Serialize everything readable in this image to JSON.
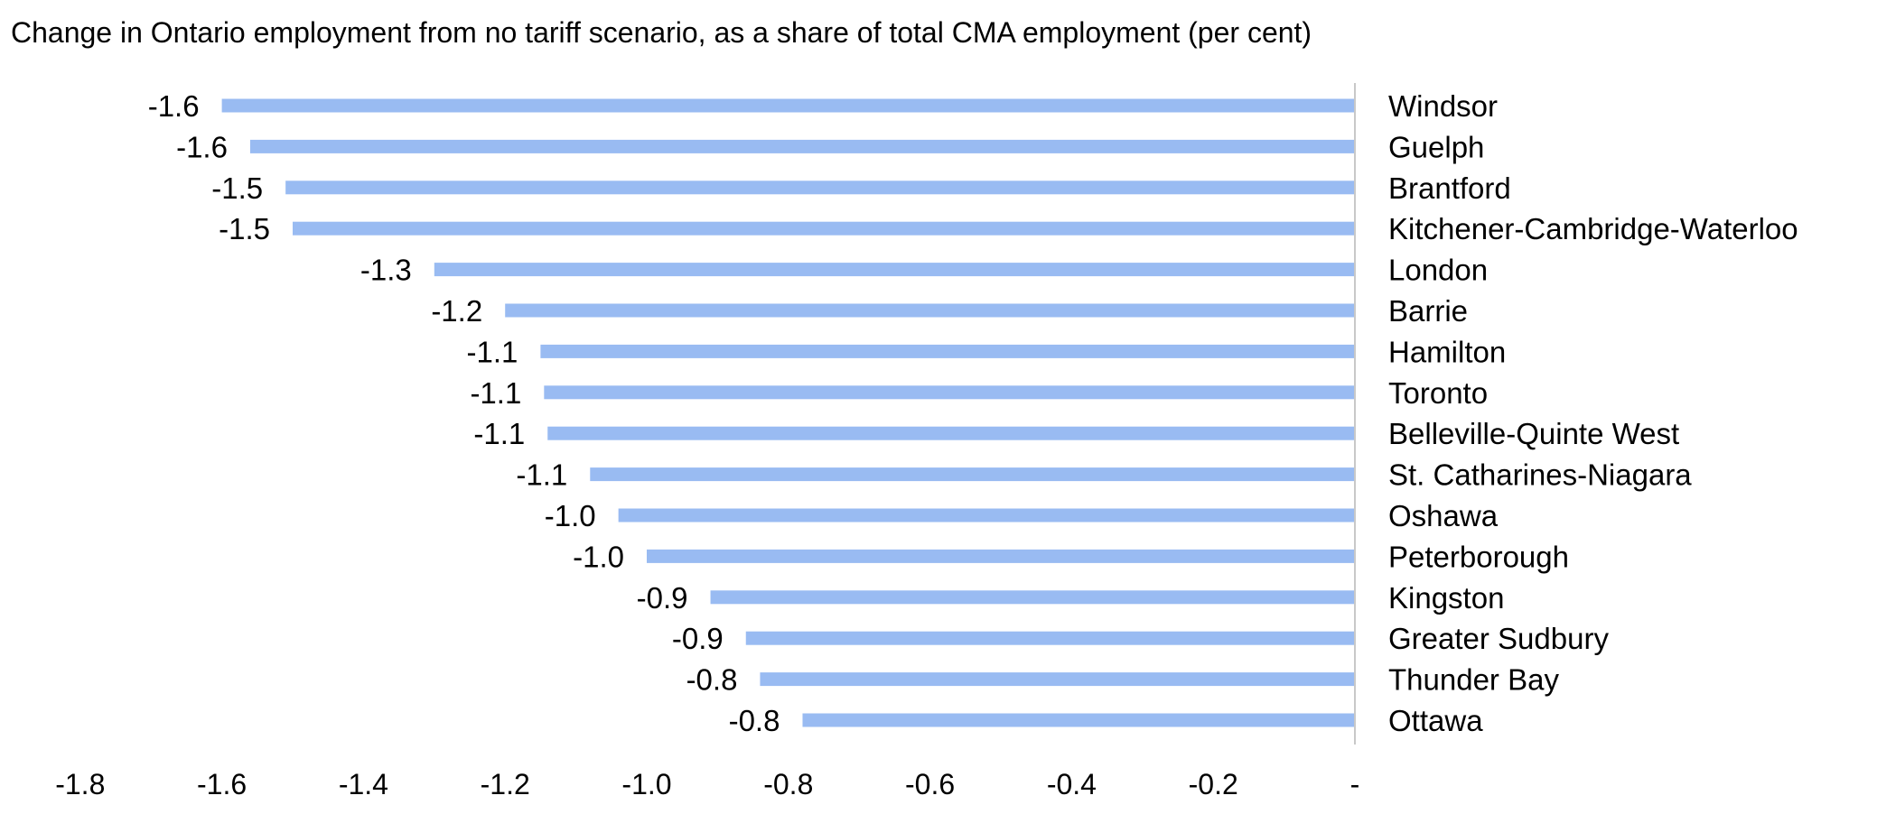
{
  "chart_data": {
    "type": "bar",
    "orientation": "horizontal",
    "title": "Change in Ontario employment from no tariff scenario, as a share of total CMA employment (per cent)",
    "categories": [
      "Windsor",
      "Guelph",
      "Brantford",
      "Kitchener-Cambridge-Waterloo",
      "London",
      "Barrie",
      "Hamilton",
      "Toronto",
      "Belleville-Quinte West",
      "St. Catharines-Niagara",
      "Oshawa",
      "Peterborough",
      "Kingston",
      "Greater Sudbury",
      "Thunder Bay",
      "Ottawa"
    ],
    "values": [
      -1.6,
      -1.56,
      -1.51,
      -1.5,
      -1.3,
      -1.2,
      -1.15,
      -1.145,
      -1.14,
      -1.08,
      -1.04,
      -1.0,
      -0.91,
      -0.86,
      -0.84,
      -0.78
    ],
    "data_labels": [
      "-1.6",
      "-1.6",
      "-1.5",
      "-1.5",
      "-1.3",
      "-1.2",
      "-1.1",
      "-1.1",
      "-1.1",
      "-1.1",
      "-1.0",
      "-1.0",
      "-0.9",
      "-0.9",
      "-0.8",
      "-0.8"
    ],
    "xlim": [
      -1.8,
      0
    ],
    "x_ticks": [
      -1.8,
      -1.6,
      -1.4,
      -1.2,
      -1.0,
      -0.8,
      -0.6,
      -0.4,
      -0.2,
      0
    ],
    "x_tick_labels": [
      "-1.8",
      "-1.6",
      "-1.4",
      "-1.2",
      "-1.0",
      "-0.8",
      "-0.6",
      "-0.4",
      "-0.2",
      "-"
    ],
    "grid": false,
    "legend": "none",
    "bar_color": "#99bbf2",
    "axis_color": "#c8c8c8"
  }
}
